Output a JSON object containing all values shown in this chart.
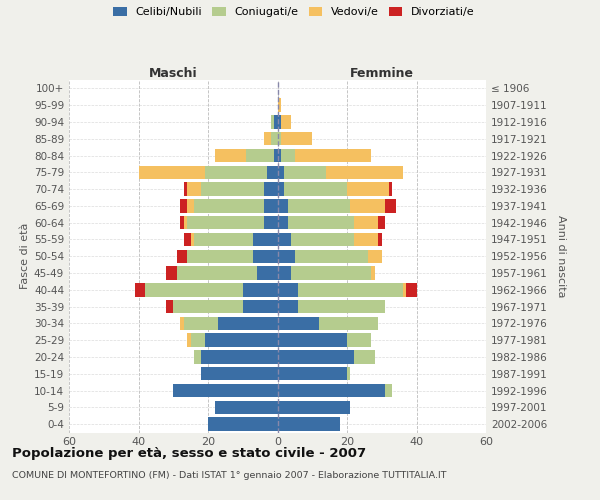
{
  "age_groups": [
    "0-4",
    "5-9",
    "10-14",
    "15-19",
    "20-24",
    "25-29",
    "30-34",
    "35-39",
    "40-44",
    "45-49",
    "50-54",
    "55-59",
    "60-64",
    "65-69",
    "70-74",
    "75-79",
    "80-84",
    "85-89",
    "90-94",
    "95-99",
    "100+"
  ],
  "birth_years": [
    "2002-2006",
    "1997-2001",
    "1992-1996",
    "1987-1991",
    "1982-1986",
    "1977-1981",
    "1972-1976",
    "1967-1971",
    "1962-1966",
    "1957-1961",
    "1952-1956",
    "1947-1951",
    "1942-1946",
    "1937-1941",
    "1932-1936",
    "1927-1931",
    "1922-1926",
    "1917-1921",
    "1912-1916",
    "1907-1911",
    "≤ 1906"
  ],
  "maschi": {
    "celibi": [
      20,
      18,
      30,
      22,
      22,
      21,
      17,
      10,
      10,
      6,
      7,
      7,
      4,
      4,
      4,
      3,
      1,
      0,
      1,
      0,
      0
    ],
    "coniugati": [
      0,
      0,
      0,
      0,
      2,
      4,
      10,
      20,
      28,
      23,
      19,
      17,
      22,
      20,
      18,
      18,
      8,
      2,
      1,
      0,
      0
    ],
    "vedovi": [
      0,
      0,
      0,
      0,
      0,
      1,
      1,
      0,
      0,
      0,
      0,
      1,
      1,
      2,
      4,
      19,
      9,
      2,
      0,
      0,
      0
    ],
    "divorziati": [
      0,
      0,
      0,
      0,
      0,
      0,
      0,
      2,
      3,
      3,
      3,
      2,
      1,
      2,
      1,
      0,
      0,
      0,
      0,
      0,
      0
    ]
  },
  "femmine": {
    "nubili": [
      18,
      21,
      31,
      20,
      22,
      20,
      12,
      6,
      6,
      4,
      5,
      4,
      3,
      3,
      2,
      2,
      1,
      0,
      1,
      0,
      0
    ],
    "coniugate": [
      0,
      0,
      2,
      1,
      6,
      7,
      17,
      25,
      30,
      23,
      21,
      18,
      19,
      18,
      18,
      12,
      4,
      1,
      0,
      0,
      0
    ],
    "vedove": [
      0,
      0,
      0,
      0,
      0,
      0,
      0,
      0,
      1,
      1,
      4,
      7,
      7,
      10,
      12,
      22,
      22,
      9,
      3,
      1,
      0
    ],
    "divorziate": [
      0,
      0,
      0,
      0,
      0,
      0,
      0,
      0,
      3,
      0,
      0,
      1,
      2,
      3,
      1,
      0,
      0,
      0,
      0,
      0,
      0
    ]
  },
  "colors": {
    "celibi_nubili": "#3a6ea5",
    "coniugati": "#b5cc8e",
    "vedovi": "#f5c060",
    "divorziati": "#cc2222"
  },
  "xlim": 60,
  "title": "Popolazione per età, sesso e stato civile - 2007",
  "subtitle": "COMUNE DI MONTEFORTINO (FM) - Dati ISTAT 1° gennaio 2007 - Elaborazione TUTTITALIA.IT",
  "ylabel_left": "Fasce di età",
  "ylabel_right": "Anni di nascita",
  "xlabel_maschi": "Maschi",
  "xlabel_femmine": "Femmine",
  "bg_color": "#f0f0eb",
  "plot_bg_color": "#ffffff"
}
